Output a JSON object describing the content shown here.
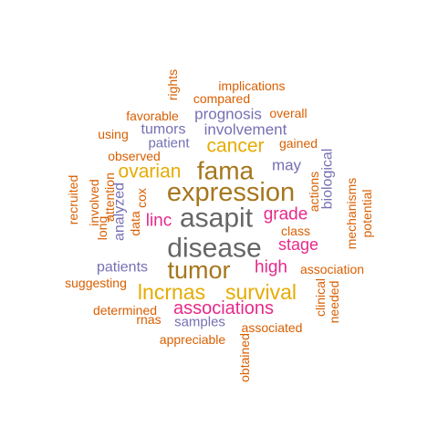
{
  "palette": {
    "orange": "#d95f02",
    "purple": "#7570b3",
    "magenta": "#e7298a",
    "gold": "#e6ab02",
    "brown": "#a6761d",
    "gray": "#666666"
  },
  "words": [
    {
      "text": "implications",
      "color": "orange"
    },
    {
      "text": "rights",
      "color": "orange"
    },
    {
      "text": "compared",
      "color": "orange"
    },
    {
      "text": "favorable",
      "color": "orange"
    },
    {
      "text": "prognosis",
      "color": "purple"
    },
    {
      "text": "overall",
      "color": "orange"
    },
    {
      "text": "using",
      "color": "orange"
    },
    {
      "text": "tumors",
      "color": "purple"
    },
    {
      "text": "involvement",
      "color": "purple"
    },
    {
      "text": "patient",
      "color": "purple"
    },
    {
      "text": "cancer",
      "color": "gold"
    },
    {
      "text": "gained",
      "color": "orange"
    },
    {
      "text": "observed",
      "color": "orange"
    },
    {
      "text": "may",
      "color": "purple"
    },
    {
      "text": "biological",
      "color": "purple"
    },
    {
      "text": "actions",
      "color": "orange"
    },
    {
      "text": "ovarian",
      "color": "gold"
    },
    {
      "text": "fama",
      "color": "brown"
    },
    {
      "text": "expression",
      "color": "brown"
    },
    {
      "text": "recruited",
      "color": "orange"
    },
    {
      "text": "involved",
      "color": "orange"
    },
    {
      "text": "long",
      "color": "orange"
    },
    {
      "text": "attention",
      "color": "orange"
    },
    {
      "text": "analyzed",
      "color": "purple"
    },
    {
      "text": "data",
      "color": "orange"
    },
    {
      "text": "cox",
      "color": "orange"
    },
    {
      "text": "linc",
      "color": "magenta"
    },
    {
      "text": "asapit",
      "color": "gray"
    },
    {
      "text": "grade",
      "color": "magenta"
    },
    {
      "text": "class",
      "color": "orange"
    },
    {
      "text": "mechanisms",
      "color": "orange"
    },
    {
      "text": "potential",
      "color": "orange"
    },
    {
      "text": "disease",
      "color": "gray"
    },
    {
      "text": "stage",
      "color": "magenta"
    },
    {
      "text": "patients",
      "color": "purple"
    },
    {
      "text": "tumor",
      "color": "brown"
    },
    {
      "text": "high",
      "color": "magenta"
    },
    {
      "text": "association",
      "color": "orange"
    },
    {
      "text": "suggesting",
      "color": "orange"
    },
    {
      "text": "lncrnas",
      "color": "gold"
    },
    {
      "text": "survival",
      "color": "gold"
    },
    {
      "text": "clinical",
      "color": "orange"
    },
    {
      "text": "needed",
      "color": "orange"
    },
    {
      "text": "determined",
      "color": "orange"
    },
    {
      "text": "associations",
      "color": "magenta"
    },
    {
      "text": "rnas",
      "color": "orange"
    },
    {
      "text": "samples",
      "color": "purple"
    },
    {
      "text": "associated",
      "color": "orange"
    },
    {
      "text": "appreciable",
      "color": "orange"
    },
    {
      "text": "obtained",
      "color": "orange"
    }
  ]
}
